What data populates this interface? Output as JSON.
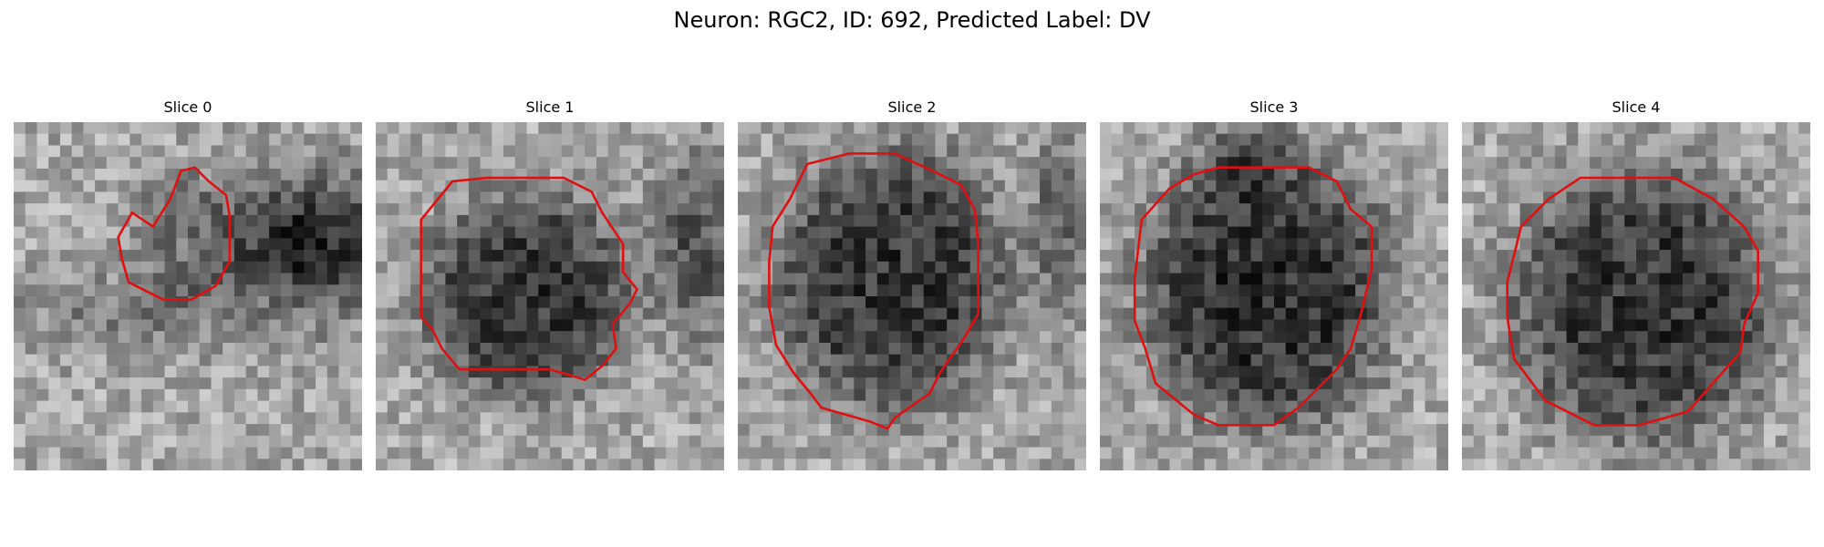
{
  "figure": {
    "title": "Neuron: RGC2, ID: 692, Predicted Label: DV"
  },
  "panels": [
    {
      "title": "Slice 0",
      "contour_color": "#e01010"
    },
    {
      "title": "Slice 1",
      "contour_color": "#e01010"
    },
    {
      "title": "Slice 2",
      "contour_color": "#e01010"
    },
    {
      "title": "Slice 3",
      "contour_color": "#e01010"
    },
    {
      "title": "Slice 4",
      "contour_color": "#e01010"
    }
  ]
}
